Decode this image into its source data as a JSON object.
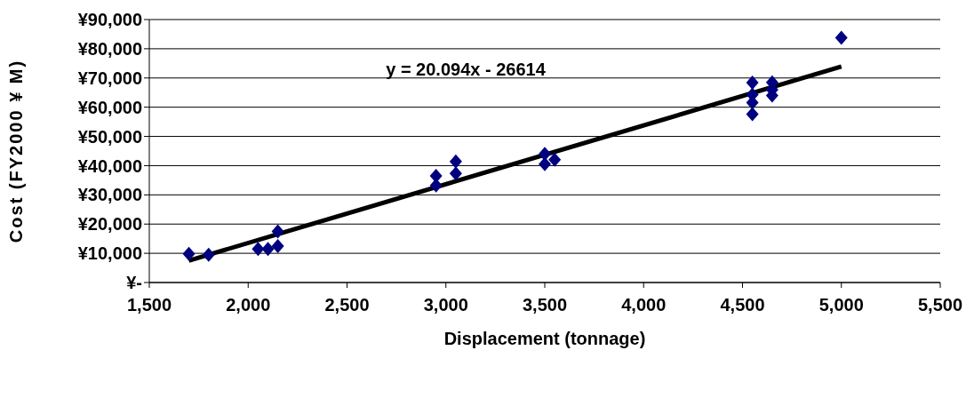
{
  "chart_data": {
    "type": "scatter",
    "xlabel": "Displacement (tonnage)",
    "ylabel": "Cost (FY2000 ¥ M)",
    "xlim": [
      1500,
      5500
    ],
    "xticks": [
      {
        "value": 1500,
        "label": "1,500"
      },
      {
        "value": 2000,
        "label": "2,000"
      },
      {
        "value": 2500,
        "label": "2,500"
      },
      {
        "value": 3000,
        "label": "3,000"
      },
      {
        "value": 3500,
        "label": "3,500"
      },
      {
        "value": 4000,
        "label": "4,000"
      },
      {
        "value": 4500,
        "label": "4,500"
      },
      {
        "value": 5000,
        "label": "5,000"
      },
      {
        "value": 5500,
        "label": "5,500"
      }
    ],
    "ylim": [
      0,
      90000
    ],
    "yticks": [
      {
        "value": 0,
        "label": "¥-"
      },
      {
        "value": 10000,
        "label": "¥10,000"
      },
      {
        "value": 20000,
        "label": "¥20,000"
      },
      {
        "value": 30000,
        "label": "¥30,000"
      },
      {
        "value": 40000,
        "label": "¥40,000"
      },
      {
        "value": 50000,
        "label": "¥50,000"
      },
      {
        "value": 60000,
        "label": "¥60,000"
      },
      {
        "value": 70000,
        "label": "¥70,000"
      },
      {
        "value": 80000,
        "label": "¥80,000"
      },
      {
        "value": 90000,
        "label": "¥90,000"
      }
    ],
    "grid": "y",
    "series": [
      {
        "marker": "diamond",
        "color": "#000080",
        "x": [
          1700,
          1800,
          2050,
          2100,
          2150,
          2150,
          2950,
          2950,
          3050,
          3050,
          3500,
          3500,
          3550,
          4550,
          4550,
          4550,
          4550,
          4650,
          4650,
          4650,
          5000
        ],
        "values": [
          9800,
          9500,
          11500,
          11500,
          12500,
          17500,
          36500,
          33200,
          41400,
          37300,
          44000,
          40500,
          42000,
          68400,
          64300,
          61600,
          57600,
          68500,
          66000,
          64000,
          83800
        ]
      },
      {
        "type": "line",
        "color": "#000000",
        "x": [
          1700,
          5000
        ],
        "values": [
          7500,
          73900
        ]
      }
    ],
    "annotations": [
      "y = 20.094x - 26614"
    ]
  }
}
